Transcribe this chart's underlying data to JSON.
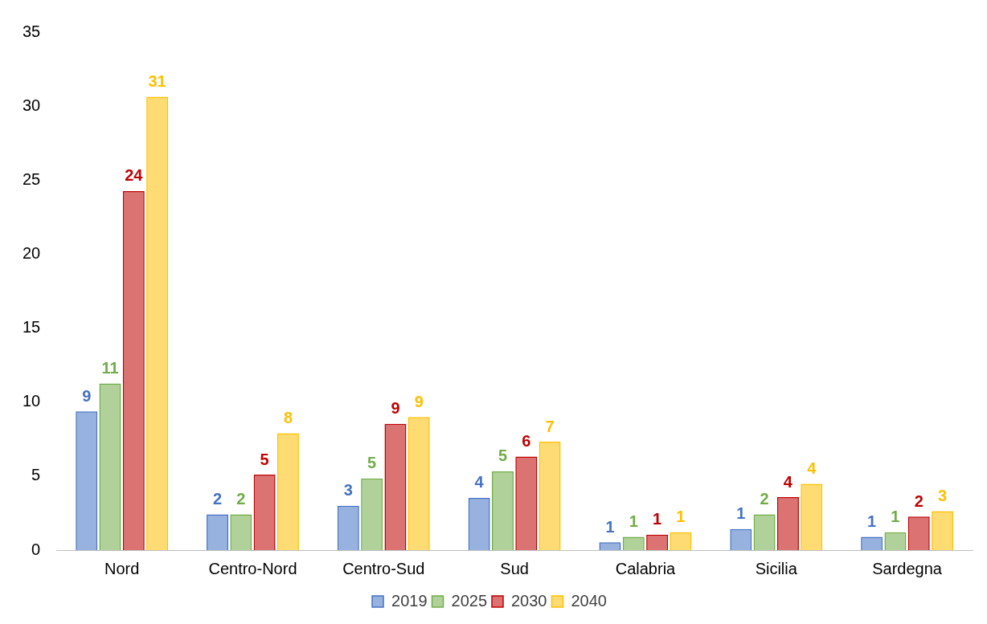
{
  "chart_data": {
    "type": "bar",
    "categories": [
      "Nord",
      "Centro-Nord",
      "Centro-Sud",
      "Sud",
      "Calabria",
      "Sicilia",
      "Sardegna"
    ],
    "series": [
      {
        "name": "2019",
        "color": "#4472c4",
        "values": [
          9.37,
          2.42,
          3.0,
          3.53,
          0.53,
          1.42,
          0.89
        ],
        "value_labels": [
          "9",
          "2",
          "3",
          "4",
          "1",
          "1",
          "1"
        ]
      },
      {
        "name": "2025",
        "color": "#70ad47",
        "values": [
          11.26,
          2.42,
          4.84,
          5.32,
          0.89,
          2.42,
          1.21
        ],
        "value_labels": [
          "11",
          "2",
          "5",
          "5",
          "1",
          "2",
          "1"
        ]
      },
      {
        "name": "2030",
        "color": "#c00000",
        "values": [
          24.26,
          5.1,
          8.53,
          6.32,
          1.05,
          3.58,
          2.26
        ],
        "value_labels": [
          "24",
          "5",
          "9",
          "6",
          "1",
          "4",
          "2"
        ]
      },
      {
        "name": "2040",
        "color": "#ffc000",
        "values": [
          30.63,
          7.9,
          9.0,
          7.32,
          1.21,
          4.47,
          2.63
        ],
        "value_labels": [
          "31",
          "8",
          "9",
          "7",
          "1",
          "4",
          "3"
        ]
      }
    ],
    "ylim": [
      0,
      35
    ],
    "yticks": [
      0,
      5,
      10,
      15,
      20,
      25,
      30,
      35
    ],
    "grid": false,
    "legend": "bottom"
  }
}
